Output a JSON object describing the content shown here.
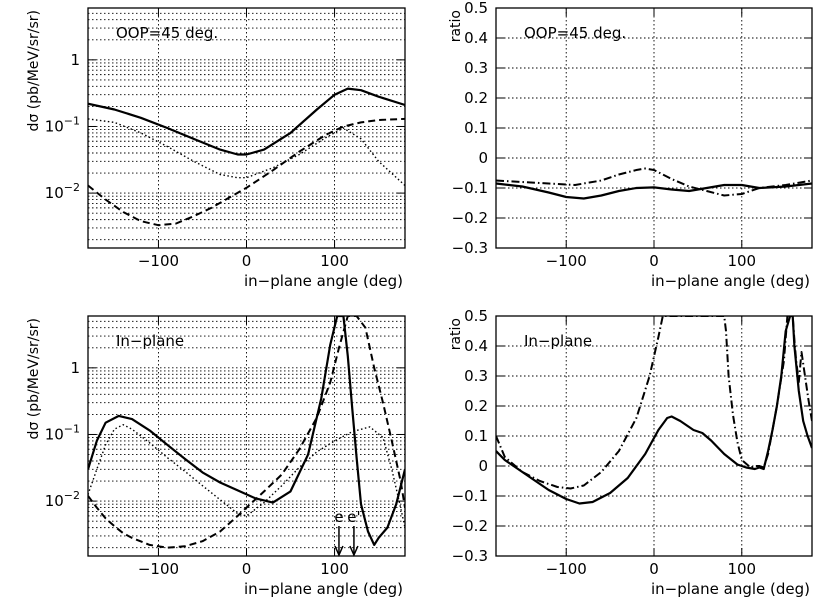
{
  "chart_data": [
    {
      "id": "top-left",
      "type": "line",
      "annotation": "OOP=45 deg.",
      "xlabel": "in−plane angle (deg)",
      "ylabel": "dσ (pb/MeV/sr/sr)",
      "yscale": "log",
      "xlim": [
        -180,
        180
      ],
      "ylim": [
        0.0015,
        6
      ],
      "xticks": [
        {
          "v": -100,
          "label": "−100"
        },
        {
          "v": 0,
          "label": "0"
        },
        {
          "v": 100,
          "label": "100"
        }
      ],
      "yticks": [
        {
          "v": 0.01,
          "base": "10",
          "exp": "−2"
        },
        {
          "v": 0.1,
          "base": "10",
          "exp": "−1"
        },
        {
          "v": 1,
          "base": "1",
          "exp": ""
        }
      ],
      "grid": true,
      "series": [
        {
          "style": "solid",
          "x": [
            -180,
            -150,
            -120,
            -90,
            -60,
            -30,
            -10,
            0,
            20,
            50,
            80,
            100,
            115,
            130,
            150,
            180
          ],
          "y": [
            0.22,
            0.18,
            0.135,
            0.095,
            0.065,
            0.045,
            0.038,
            0.038,
            0.045,
            0.08,
            0.18,
            0.3,
            0.37,
            0.35,
            0.28,
            0.21
          ]
        },
        {
          "style": "dotted",
          "x": [
            -180,
            -150,
            -120,
            -90,
            -60,
            -30,
            -10,
            0,
            30,
            60,
            90,
            110,
            130,
            150,
            180
          ],
          "y": [
            0.13,
            0.115,
            0.08,
            0.05,
            0.03,
            0.019,
            0.017,
            0.017,
            0.024,
            0.038,
            0.068,
            0.095,
            0.065,
            0.03,
            0.013
          ]
        },
        {
          "style": "dashed",
          "x": [
            -180,
            -160,
            -140,
            -120,
            -100,
            -80,
            -60,
            -40,
            -20,
            0,
            30,
            60,
            90,
            110,
            130,
            150,
            180
          ],
          "y": [
            0.013,
            0.008,
            0.0052,
            0.0038,
            0.0033,
            0.0035,
            0.0045,
            0.006,
            0.0085,
            0.012,
            0.022,
            0.042,
            0.075,
            0.1,
            0.115,
            0.125,
            0.13
          ]
        }
      ]
    },
    {
      "id": "top-right",
      "type": "line",
      "annotation": "OOP=45 deg.",
      "xlabel": "in−plane angle (deg)",
      "ylabel": "ratio",
      "yscale": "linear",
      "xlim": [
        -180,
        180
      ],
      "ylim": [
        -0.3,
        0.5
      ],
      "xticks": [
        {
          "v": -100,
          "label": "−100"
        },
        {
          "v": 0,
          "label": "0"
        },
        {
          "v": 100,
          "label": "100"
        }
      ],
      "yticks": [
        {
          "v": -0.3,
          "label": "−0.3"
        },
        {
          "v": -0.2,
          "label": "−0.2"
        },
        {
          "v": -0.1,
          "label": "−0.1"
        },
        {
          "v": 0,
          "label": "0"
        },
        {
          "v": 0.1,
          "label": "0.1"
        },
        {
          "v": 0.2,
          "label": "0.2"
        },
        {
          "v": 0.3,
          "label": "0.3"
        },
        {
          "v": 0.4,
          "label": "0.4"
        },
        {
          "v": 0.5,
          "label": "0.5"
        }
      ],
      "grid": true,
      "series": [
        {
          "style": "solid",
          "x": [
            -180,
            -150,
            -120,
            -100,
            -80,
            -60,
            -40,
            -20,
            0,
            20,
            40,
            60,
            80,
            100,
            120,
            150,
            180
          ],
          "y": [
            -0.085,
            -0.095,
            -0.115,
            -0.13,
            -0.135,
            -0.125,
            -0.11,
            -0.1,
            -0.098,
            -0.105,
            -0.11,
            -0.1,
            -0.09,
            -0.09,
            -0.1,
            -0.095,
            -0.085
          ]
        },
        {
          "style": "dashdot",
          "x": [
            -180,
            -150,
            -120,
            -90,
            -60,
            -40,
            -20,
            -10,
            0,
            20,
            40,
            60,
            80,
            100,
            120,
            150,
            180
          ],
          "y": [
            -0.075,
            -0.08,
            -0.085,
            -0.09,
            -0.075,
            -0.055,
            -0.04,
            -0.035,
            -0.04,
            -0.07,
            -0.095,
            -0.11,
            -0.125,
            -0.12,
            -0.1,
            -0.09,
            -0.075
          ]
        }
      ]
    },
    {
      "id": "bottom-left",
      "type": "line",
      "annotation": "In−plane",
      "xlabel": "in−plane angle (deg)",
      "ylabel": "dσ (pb/MeV/sr/sr)",
      "yscale": "log",
      "xlim": [
        -180,
        180
      ],
      "ylim": [
        0.0015,
        6
      ],
      "xticks": [
        {
          "v": -100,
          "label": "−100"
        },
        {
          "v": 0,
          "label": "0"
        },
        {
          "v": 100,
          "label": "100"
        }
      ],
      "yticks": [
        {
          "v": 0.01,
          "base": "10",
          "exp": "−2"
        },
        {
          "v": 0.1,
          "base": "10",
          "exp": "−1"
        },
        {
          "v": 1,
          "base": "1",
          "exp": ""
        }
      ],
      "grid": true,
      "arrows": [
        {
          "label": "e",
          "x": 105
        },
        {
          "label": "e'",
          "x": 122
        }
      ],
      "series": [
        {
          "style": "solid",
          "x": [
            -180,
            -170,
            -160,
            -145,
            -130,
            -110,
            -90,
            -70,
            -50,
            -30,
            -10,
            10,
            30,
            50,
            70,
            85,
            95,
            103,
            110,
            115,
            120,
            125,
            130,
            138,
            145,
            150,
            160,
            170,
            180
          ],
          "y": [
            0.03,
            0.08,
            0.15,
            0.19,
            0.17,
            0.115,
            0.07,
            0.043,
            0.027,
            0.019,
            0.0145,
            0.011,
            0.0095,
            0.014,
            0.05,
            0.35,
            2.2,
            6,
            6,
            1.5,
            0.25,
            0.045,
            0.009,
            0.0035,
            0.0022,
            0.0028,
            0.004,
            0.009,
            0.03
          ]
        },
        {
          "style": "dotted",
          "x": [
            -180,
            -170,
            -160,
            -150,
            -140,
            -130,
            -110,
            -90,
            -70,
            -50,
            -30,
            -10,
            0,
            20,
            40,
            60,
            80,
            100,
            120,
            140,
            155,
            165,
            175,
            180
          ],
          "y": [
            0.0125,
            0.03,
            0.07,
            0.12,
            0.14,
            0.12,
            0.075,
            0.045,
            0.028,
            0.017,
            0.0105,
            0.0065,
            0.006,
            0.0095,
            0.017,
            0.032,
            0.055,
            0.08,
            0.11,
            0.13,
            0.09,
            0.03,
            0.008,
            0.004
          ]
        },
        {
          "style": "dashed",
          "x": [
            -180,
            -170,
            -160,
            -150,
            -140,
            -130,
            -110,
            -90,
            -70,
            -50,
            -30,
            -10,
            0,
            20,
            40,
            60,
            80,
            95,
            105,
            115,
            125,
            135,
            145,
            155,
            165,
            175,
            180
          ],
          "y": [
            0.012,
            0.008,
            0.0055,
            0.0042,
            0.0033,
            0.0028,
            0.0022,
            0.002,
            0.0021,
            0.0025,
            0.0035,
            0.006,
            0.008,
            0.014,
            0.025,
            0.06,
            0.18,
            0.6,
            2,
            6,
            6,
            4,
            1,
            0.3,
            0.08,
            0.02,
            0.008
          ]
        }
      ]
    },
    {
      "id": "bottom-right",
      "type": "line",
      "annotation": "In−plane",
      "xlabel": "in−plane angle (deg)",
      "ylabel": "ratio",
      "yscale": "linear",
      "xlim": [
        -180,
        180
      ],
      "ylim": [
        -0.3,
        0.5
      ],
      "xticks": [
        {
          "v": -100,
          "label": "−100"
        },
        {
          "v": 0,
          "label": "0"
        },
        {
          "v": 100,
          "label": "100"
        }
      ],
      "yticks": [
        {
          "v": -0.3,
          "label": "−0.3"
        },
        {
          "v": -0.2,
          "label": "−0.2"
        },
        {
          "v": -0.1,
          "label": "−0.1"
        },
        {
          "v": 0,
          "label": "0"
        },
        {
          "v": 0.1,
          "label": "0.1"
        },
        {
          "v": 0.2,
          "label": "0.2"
        },
        {
          "v": 0.3,
          "label": "0.3"
        },
        {
          "v": 0.4,
          "label": "0.4"
        },
        {
          "v": 0.5,
          "label": "0.5"
        }
      ],
      "grid": true,
      "series": [
        {
          "style": "solid",
          "x": [
            -180,
            -170,
            -160,
            -140,
            -120,
            -100,
            -85,
            -70,
            -50,
            -30,
            -10,
            5,
            15,
            20,
            30,
            45,
            55,
            65,
            80,
            95,
            105,
            115,
            120,
            125,
            130,
            135,
            140,
            145,
            150,
            155,
            158,
            160,
            165,
            170,
            175,
            180
          ],
          "y": [
            0.05,
            0.02,
            0.0,
            -0.04,
            -0.08,
            -0.11,
            -0.125,
            -0.12,
            -0.09,
            -0.04,
            0.04,
            0.12,
            0.16,
            0.165,
            0.15,
            0.12,
            0.11,
            0.085,
            0.04,
            0.005,
            -0.005,
            -0.01,
            -0.005,
            -0.01,
            0.05,
            0.12,
            0.2,
            0.3,
            0.45,
            0.5,
            0.5,
            0.4,
            0.25,
            0.15,
            0.1,
            0.06
          ]
        },
        {
          "style": "dashdot",
          "x": [
            -180,
            -170,
            -150,
            -130,
            -110,
            -95,
            -80,
            -60,
            -40,
            -20,
            -5,
            5,
            10,
            12,
            80,
            82,
            85,
            90,
            95,
            100,
            110,
            115,
            120,
            125,
            130,
            140,
            148,
            152,
            155,
            158,
            160,
            162,
            165,
            168,
            172,
            176,
            180
          ],
          "y": [
            0.1,
            0.03,
            -0.02,
            -0.05,
            -0.07,
            -0.075,
            -0.065,
            -0.02,
            0.05,
            0.16,
            0.3,
            0.43,
            0.5,
            0.5,
            0.5,
            0.45,
            0.3,
            0.17,
            0.08,
            0.02,
            -0.005,
            0.0,
            0.0,
            -0.005,
            0.04,
            0.2,
            0.35,
            0.5,
            0.5,
            0.5,
            0.42,
            0.35,
            0.28,
            0.38,
            0.3,
            0.22,
            0.15
          ]
        }
      ]
    }
  ]
}
